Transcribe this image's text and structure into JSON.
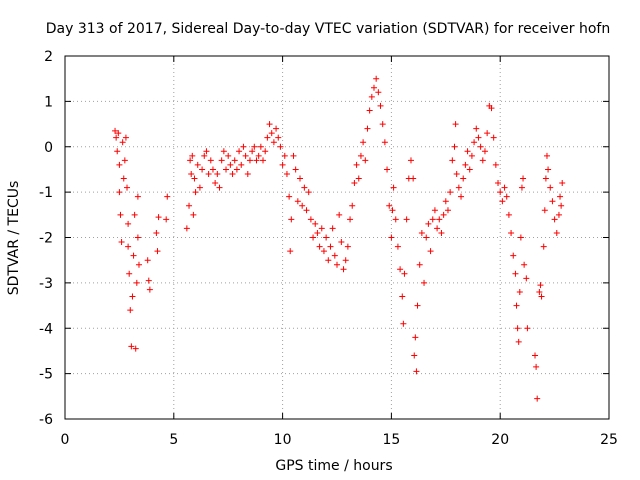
{
  "chart_data": {
    "type": "scatter",
    "title": "Day 313 of 2017, Sidereal Day-to-day VTEC variation (SDTVAR) for receiver hofn",
    "xlabel": "GPS time / hours",
    "ylabel": "SDTVAR / TECUs",
    "xlim": [
      0,
      25
    ],
    "ylim": [
      -6,
      2
    ],
    "xticks": [
      "0",
      "5",
      "10",
      "15",
      "20",
      "25"
    ],
    "yticks": [
      "-6",
      "-5",
      "-4",
      "-3",
      "-2",
      "-1",
      "0",
      "1",
      "2"
    ],
    "grid": true,
    "marker": "+",
    "color": "#ff0000",
    "series": [
      {
        "name": "SDTVAR",
        "points": [
          [
            2.3,
            0.35
          ],
          [
            2.35,
            0.2
          ],
          [
            2.4,
            -0.1
          ],
          [
            2.45,
            0.3
          ],
          [
            2.5,
            -0.4
          ],
          [
            2.5,
            -1.0
          ],
          [
            2.55,
            -1.5
          ],
          [
            2.6,
            -2.1
          ],
          [
            2.65,
            0.1
          ],
          [
            2.7,
            -0.7
          ],
          [
            2.75,
            -0.3
          ],
          [
            2.8,
            0.2
          ],
          [
            2.85,
            -0.9
          ],
          [
            2.9,
            -1.7
          ],
          [
            2.9,
            -2.2
          ],
          [
            2.95,
            -2.8
          ],
          [
            3.0,
            -3.6
          ],
          [
            3.05,
            -4.4
          ],
          [
            3.1,
            -3.3
          ],
          [
            3.15,
            -2.4
          ],
          [
            3.2,
            -1.5
          ],
          [
            3.25,
            -4.45
          ],
          [
            3.3,
            -3.0
          ],
          [
            3.35,
            -2.0
          ],
          [
            3.35,
            -1.1
          ],
          [
            3.4,
            -2.6
          ],
          [
            3.8,
            -2.5
          ],
          [
            3.85,
            -2.95
          ],
          [
            3.9,
            -3.15
          ],
          [
            4.2,
            -1.9
          ],
          [
            4.25,
            -2.3
          ],
          [
            4.3,
            -1.55
          ],
          [
            4.65,
            -1.6
          ],
          [
            4.7,
            -1.1
          ],
          [
            5.6,
            -1.8
          ],
          [
            5.7,
            -1.3
          ],
          [
            5.75,
            -0.3
          ],
          [
            5.8,
            -0.6
          ],
          [
            5.85,
            -0.2
          ],
          [
            5.9,
            -1.5
          ],
          [
            5.95,
            -0.7
          ],
          [
            6.0,
            -1.0
          ],
          [
            6.1,
            -0.4
          ],
          [
            6.2,
            -0.9
          ],
          [
            6.3,
            -0.5
          ],
          [
            6.4,
            -0.2
          ],
          [
            6.5,
            -0.1
          ],
          [
            6.6,
            -0.6
          ],
          [
            6.7,
            -0.3
          ],
          [
            6.8,
            -0.5
          ],
          [
            6.9,
            -0.8
          ],
          [
            7.0,
            -0.6
          ],
          [
            7.1,
            -0.9
          ],
          [
            7.2,
            -0.3
          ],
          [
            7.3,
            -0.1
          ],
          [
            7.4,
            -0.5
          ],
          [
            7.5,
            -0.2
          ],
          [
            7.6,
            -0.4
          ],
          [
            7.7,
            -0.6
          ],
          [
            7.8,
            -0.3
          ],
          [
            7.9,
            -0.5
          ],
          [
            8.0,
            -0.1
          ],
          [
            8.1,
            -0.4
          ],
          [
            8.2,
            0.0
          ],
          [
            8.3,
            -0.2
          ],
          [
            8.4,
            -0.6
          ],
          [
            8.5,
            -0.3
          ],
          [
            8.6,
            -0.1
          ],
          [
            8.7,
            0.0
          ],
          [
            8.8,
            -0.3
          ],
          [
            8.9,
            -0.2
          ],
          [
            9.0,
            0.0
          ],
          [
            9.1,
            -0.3
          ],
          [
            9.2,
            -0.1
          ],
          [
            9.3,
            0.2
          ],
          [
            9.4,
            0.5
          ],
          [
            9.5,
            0.3
          ],
          [
            9.6,
            0.1
          ],
          [
            9.7,
            0.4
          ],
          [
            9.8,
            0.2
          ],
          [
            9.9,
            0.0
          ],
          [
            10.0,
            -0.4
          ],
          [
            10.1,
            -0.2
          ],
          [
            10.2,
            -0.6
          ],
          [
            10.3,
            -1.1
          ],
          [
            10.35,
            -2.3
          ],
          [
            10.4,
            -1.6
          ],
          [
            10.5,
            -0.2
          ],
          [
            10.6,
            -0.5
          ],
          [
            10.7,
            -1.2
          ],
          [
            10.8,
            -0.7
          ],
          [
            10.9,
            -1.3
          ],
          [
            11.0,
            -0.9
          ],
          [
            11.1,
            -1.4
          ],
          [
            11.2,
            -1.0
          ],
          [
            11.3,
            -1.6
          ],
          [
            11.4,
            -2.0
          ],
          [
            11.5,
            -1.7
          ],
          [
            11.6,
            -1.9
          ],
          [
            11.7,
            -2.2
          ],
          [
            11.8,
            -1.8
          ],
          [
            11.9,
            -2.3
          ],
          [
            12.0,
            -2.0
          ],
          [
            12.1,
            -2.5
          ],
          [
            12.2,
            -2.2
          ],
          [
            12.3,
            -1.8
          ],
          [
            12.4,
            -2.4
          ],
          [
            12.5,
            -2.6
          ],
          [
            12.6,
            -1.5
          ],
          [
            12.7,
            -2.1
          ],
          [
            12.8,
            -2.7
          ],
          [
            12.9,
            -2.5
          ],
          [
            13.0,
            -2.2
          ],
          [
            13.1,
            -1.6
          ],
          [
            13.2,
            -1.3
          ],
          [
            13.3,
            -0.8
          ],
          [
            13.4,
            -0.4
          ],
          [
            13.5,
            -0.7
          ],
          [
            13.6,
            -0.2
          ],
          [
            13.7,
            0.1
          ],
          [
            13.8,
            -0.3
          ],
          [
            13.9,
            0.4
          ],
          [
            14.0,
            0.8
          ],
          [
            14.1,
            1.1
          ],
          [
            14.2,
            1.3
          ],
          [
            14.3,
            1.5
          ],
          [
            14.4,
            1.2
          ],
          [
            14.5,
            0.9
          ],
          [
            14.6,
            0.5
          ],
          [
            14.7,
            0.1
          ],
          [
            14.8,
            -0.5
          ],
          [
            14.9,
            -1.3
          ],
          [
            15.0,
            -2.0
          ],
          [
            15.05,
            -1.4
          ],
          [
            15.1,
            -0.9
          ],
          [
            15.2,
            -1.6
          ],
          [
            15.3,
            -2.2
          ],
          [
            15.4,
            -2.7
          ],
          [
            15.5,
            -3.3
          ],
          [
            15.55,
            -3.9
          ],
          [
            15.6,
            -2.8
          ],
          [
            15.7,
            -1.6
          ],
          [
            15.8,
            -0.7
          ],
          [
            15.9,
            -0.3
          ],
          [
            16.0,
            -0.7
          ],
          [
            16.05,
            -4.6
          ],
          [
            16.1,
            -4.2
          ],
          [
            16.15,
            -4.95
          ],
          [
            16.2,
            -3.5
          ],
          [
            16.3,
            -2.6
          ],
          [
            16.4,
            -1.9
          ],
          [
            16.5,
            -3.0
          ],
          [
            16.6,
            -2.0
          ],
          [
            16.7,
            -1.7
          ],
          [
            16.8,
            -2.3
          ],
          [
            16.9,
            -1.6
          ],
          [
            17.0,
            -1.4
          ],
          [
            17.1,
            -1.8
          ],
          [
            17.2,
            -1.6
          ],
          [
            17.3,
            -1.9
          ],
          [
            17.4,
            -1.5
          ],
          [
            17.5,
            -1.2
          ],
          [
            17.6,
            -1.4
          ],
          [
            17.7,
            -1.0
          ],
          [
            17.8,
            -0.3
          ],
          [
            17.9,
            0.0
          ],
          [
            17.95,
            0.5
          ],
          [
            18.0,
            -0.6
          ],
          [
            18.1,
            -0.9
          ],
          [
            18.2,
            -1.1
          ],
          [
            18.3,
            -0.7
          ],
          [
            18.4,
            -0.4
          ],
          [
            18.5,
            -0.1
          ],
          [
            18.6,
            -0.5
          ],
          [
            18.7,
            -0.2
          ],
          [
            18.8,
            0.1
          ],
          [
            18.9,
            0.4
          ],
          [
            19.0,
            0.2
          ],
          [
            19.1,
            0.0
          ],
          [
            19.2,
            -0.3
          ],
          [
            19.3,
            -0.1
          ],
          [
            19.4,
            0.3
          ],
          [
            19.5,
            0.9
          ],
          [
            19.6,
            0.85
          ],
          [
            19.7,
            0.2
          ],
          [
            19.8,
            -0.4
          ],
          [
            19.9,
            -0.8
          ],
          [
            20.0,
            -1.0
          ],
          [
            20.1,
            -1.2
          ],
          [
            20.2,
            -0.9
          ],
          [
            20.3,
            -1.1
          ],
          [
            20.4,
            -1.5
          ],
          [
            20.5,
            -1.9
          ],
          [
            20.6,
            -2.4
          ],
          [
            20.7,
            -2.8
          ],
          [
            20.75,
            -3.5
          ],
          [
            20.8,
            -4.0
          ],
          [
            20.85,
            -4.3
          ],
          [
            20.9,
            -3.2
          ],
          [
            20.95,
            -2.0
          ],
          [
            21.0,
            -0.9
          ],
          [
            21.05,
            -0.7
          ],
          [
            21.1,
            -2.6
          ],
          [
            21.2,
            -2.9
          ],
          [
            21.25,
            -4.0
          ],
          [
            21.6,
            -4.6
          ],
          [
            21.65,
            -4.85
          ],
          [
            21.7,
            -5.55
          ],
          [
            21.8,
            -3.2
          ],
          [
            21.85,
            -3.05
          ],
          [
            21.9,
            -3.3
          ],
          [
            22.0,
            -2.2
          ],
          [
            22.05,
            -1.4
          ],
          [
            22.1,
            -0.7
          ],
          [
            22.15,
            -0.2
          ],
          [
            22.2,
            -0.5
          ],
          [
            22.3,
            -0.9
          ],
          [
            22.4,
            -1.2
          ],
          [
            22.5,
            -1.6
          ],
          [
            22.6,
            -1.9
          ],
          [
            22.7,
            -1.5
          ],
          [
            22.75,
            -1.1
          ],
          [
            22.8,
            -1.3
          ],
          [
            22.85,
            -0.8
          ]
        ]
      }
    ]
  }
}
